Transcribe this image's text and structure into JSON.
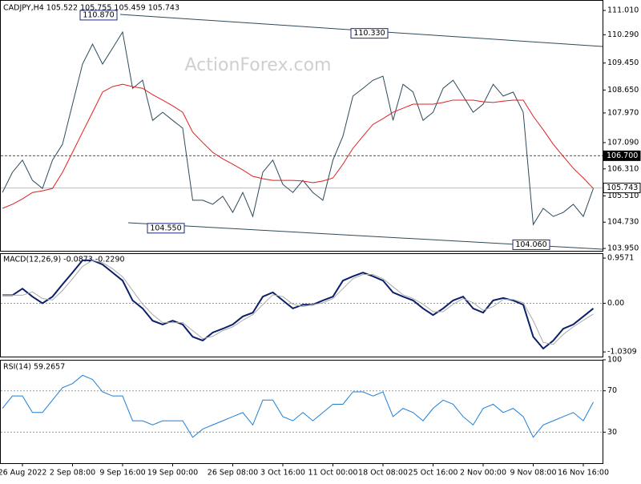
{
  "chart_data": [
    {
      "type": "line",
      "title": "CADJPY,H4  105.522 105.755 105.459 105.743",
      "watermark": "ActionForex.com",
      "ylim": [
        103.88,
        111.32
      ],
      "yticks": [
        {
          "value": 111.01,
          "label": "111.010"
        },
        {
          "value": 110.29,
          "label": "110.290"
        },
        {
          "value": 109.45,
          "label": "109.450"
        },
        {
          "value": 108.65,
          "label": "108.650"
        },
        {
          "value": 107.97,
          "label": "107.970"
        },
        {
          "value": 107.09,
          "label": "107.090"
        },
        {
          "value": 106.31,
          "label": "106.310"
        },
        {
          "value": 105.51,
          "label": "105.510"
        },
        {
          "value": 104.73,
          "label": "104.730"
        },
        {
          "value": 103.95,
          "label": "103.950"
        }
      ],
      "levels": [
        {
          "value": 106.7,
          "label": "106.700"
        },
        {
          "value": 105.743,
          "label": "105.743"
        }
      ],
      "annotations": [
        {
          "value": 110.87,
          "label": "110.870"
        },
        {
          "value": 110.33,
          "label": "110.330"
        },
        {
          "value": 104.55,
          "label": "104.550"
        },
        {
          "value": 104.06,
          "label": "104.060"
        }
      ],
      "series": [
        {
          "color": "#2c4a5a",
          "values": [
            105.61,
            106.21,
            106.57,
            105.97,
            105.73,
            106.57,
            107.04,
            108.23,
            109.42,
            110.01,
            109.42,
            109.89,
            110.37,
            108.7,
            108.94,
            107.75,
            107.99,
            107.75,
            107.52,
            105.38,
            105.38,
            105.26,
            105.5,
            105.02,
            105.61,
            104.9,
            106.21,
            106.57,
            105.85,
            105.61,
            105.97,
            105.61,
            105.38,
            106.57,
            107.28,
            108.47,
            108.7,
            108.94,
            109.06,
            107.75,
            108.82,
            108.59,
            107.75,
            107.99,
            108.7,
            108.94,
            108.47,
            107.99,
            108.23,
            108.82,
            108.47,
            108.59,
            107.99,
            104.66,
            105.14,
            104.9,
            105.02,
            105.26,
            104.9,
            105.73
          ]
        },
        {
          "color": "#e02020",
          "values": [
            105.14,
            105.26,
            105.42,
            105.61,
            105.66,
            105.73,
            106.21,
            106.8,
            107.4,
            107.99,
            108.59,
            108.75,
            108.82,
            108.75,
            108.7,
            108.51,
            108.35,
            108.18,
            107.99,
            107.4,
            107.09,
            106.8,
            106.61,
            106.45,
            106.28,
            106.09,
            106.02,
            105.97,
            105.97,
            105.97,
            105.95,
            105.9,
            105.95,
            106.04,
            106.45,
            106.92,
            107.28,
            107.63,
            107.8,
            107.99,
            108.11,
            108.23,
            108.23,
            108.23,
            108.28,
            108.35,
            108.35,
            108.35,
            108.3,
            108.28,
            108.32,
            108.35,
            108.35,
            107.87,
            107.47,
            107.04,
            106.68,
            106.33,
            106.04,
            105.73
          ]
        }
      ]
    },
    {
      "type": "line",
      "title": "MACD(12,26,9) -0.0873 -0.2290",
      "ylim": [
        -1.13,
        1.06
      ],
      "yticks": [
        0.9571,
        {
          "value": 0,
          "label": "0.00"
        },
        -1.0309
      ],
      "series": [
        {
          "color": "#0b1f6b",
          "values": [
            0.17,
            0.17,
            0.31,
            0.14,
            0.0,
            0.14,
            0.4,
            0.65,
            0.91,
            0.91,
            0.82,
            0.65,
            0.48,
            0.06,
            -0.11,
            -0.37,
            -0.45,
            -0.37,
            -0.45,
            -0.71,
            -0.79,
            -0.62,
            -0.54,
            -0.45,
            -0.28,
            -0.2,
            0.14,
            0.23,
            0.06,
            -0.11,
            -0.03,
            -0.03,
            0.06,
            0.14,
            0.48,
            0.57,
            0.65,
            0.57,
            0.48,
            0.23,
            0.14,
            0.06,
            -0.11,
            -0.25,
            -0.11,
            0.06,
            0.14,
            -0.11,
            -0.2,
            0.06,
            0.11,
            0.06,
            -0.03,
            -0.71,
            -0.96,
            -0.79,
            -0.54,
            -0.45,
            -0.28,
            -0.11
          ]
        },
        {
          "color": "#aaaaaa",
          "values": [
            0.17,
            0.17,
            0.17,
            0.24,
            0.1,
            0.07,
            0.27,
            0.52,
            0.78,
            0.91,
            0.86,
            0.73,
            0.56,
            0.27,
            -0.02,
            -0.24,
            -0.41,
            -0.41,
            -0.41,
            -0.58,
            -0.75,
            -0.7,
            -0.58,
            -0.5,
            -0.36,
            -0.24,
            -0.03,
            0.18,
            0.14,
            -0.02,
            -0.07,
            -0.03,
            0.01,
            0.1,
            0.31,
            0.52,
            0.61,
            0.61,
            0.52,
            0.35,
            0.18,
            0.1,
            -0.02,
            -0.18,
            -0.18,
            -0.02,
            0.1,
            0.01,
            -0.15,
            -0.07,
            0.08,
            0.08,
            0.01,
            -0.37,
            -0.83,
            -0.87,
            -0.66,
            -0.5,
            -0.36,
            -0.23
          ]
        }
      ]
    },
    {
      "type": "line",
      "title": "RSI(14) 59.2657",
      "ylim": [
        0,
        100
      ],
      "yticks": [
        100,
        70,
        30
      ],
      "categories": [
        null,
        null,
        "26 Aug 2022",
        null,
        null,
        null,
        null,
        "2 Sep 08:00",
        null,
        null,
        null,
        null,
        "9 Sep 16:00",
        null,
        null,
        null,
        null,
        "19 Sep 00:00",
        null,
        null,
        null,
        null,
        null,
        "26 Sep 08:00",
        null,
        null,
        null,
        null,
        "3 Oct 16:00",
        null,
        null,
        null,
        null,
        "11 Oct 00:00",
        null,
        null,
        null,
        null,
        "18 Oct 08:00",
        null,
        null,
        null,
        null,
        "25 Oct 16:00",
        null,
        null,
        null,
        null,
        "2 Nov 00:00",
        null,
        null,
        null,
        null,
        "9 Nov 08:00",
        null,
        null,
        null,
        null,
        "16 Nov 16:00",
        null
      ],
      "series": [
        {
          "color": "#1e7fd6",
          "values": [
            53,
            65,
            65,
            49,
            49,
            61,
            73,
            77,
            85,
            81,
            69,
            65,
            65,
            41,
            41,
            37,
            41,
            41,
            41,
            25,
            33,
            37,
            41,
            45,
            49,
            37,
            61,
            61,
            45,
            41,
            49,
            41,
            49,
            57,
            57,
            69,
            69,
            65,
            69,
            45,
            53,
            49,
            41,
            53,
            61,
            57,
            45,
            37,
            53,
            57,
            49,
            53,
            45,
            25,
            37,
            41,
            45,
            49,
            41,
            59
          ]
        }
      ]
    }
  ]
}
